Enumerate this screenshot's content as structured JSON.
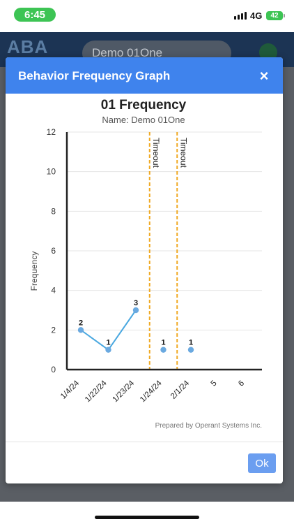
{
  "status_bar": {
    "time": "6:45",
    "network": "4G",
    "battery": "42"
  },
  "app_bar": {
    "logo": "ABA",
    "client_name": "Demo 01One"
  },
  "modal": {
    "title": "Behavior Frequency Graph",
    "close_icon": "×",
    "ok_label": "Ok"
  },
  "chart_data": {
    "type": "line",
    "title": "01 Frequency",
    "subtitle": "Name: Demo 01One",
    "ylabel": "Frequency",
    "xlabel": "",
    "ylim": [
      0,
      12
    ],
    "yticks": [
      "0",
      "2",
      "4",
      "6",
      "8",
      "10",
      "12"
    ],
    "categories": [
      "1/4/24",
      "1/22/24",
      "1/23/24",
      "1/24/24",
      "2/1/24",
      "5",
      "6"
    ],
    "series": [
      {
        "name": "",
        "points": [
          {
            "x": "1/4/24",
            "y": 2
          },
          {
            "x": "1/22/24",
            "y": 1
          },
          {
            "x": "1/23/24",
            "y": 3
          }
        ],
        "connected": true
      },
      {
        "name": "",
        "points": [
          {
            "x": "1/24/24",
            "y": 1
          }
        ],
        "connected": false
      },
      {
        "name": "",
        "points": [
          {
            "x": "2/1/24",
            "y": 1
          }
        ],
        "connected": false
      }
    ],
    "phase_lines": [
      {
        "after": "1/23/24",
        "label": "Timeout"
      },
      {
        "after": "1/24/24",
        "label": "Timeout"
      }
    ],
    "grid": true,
    "line_color": "#4aa8e0",
    "phase_line_color": "#f0a922",
    "footer": "Prepared by Operant Systems Inc."
  }
}
